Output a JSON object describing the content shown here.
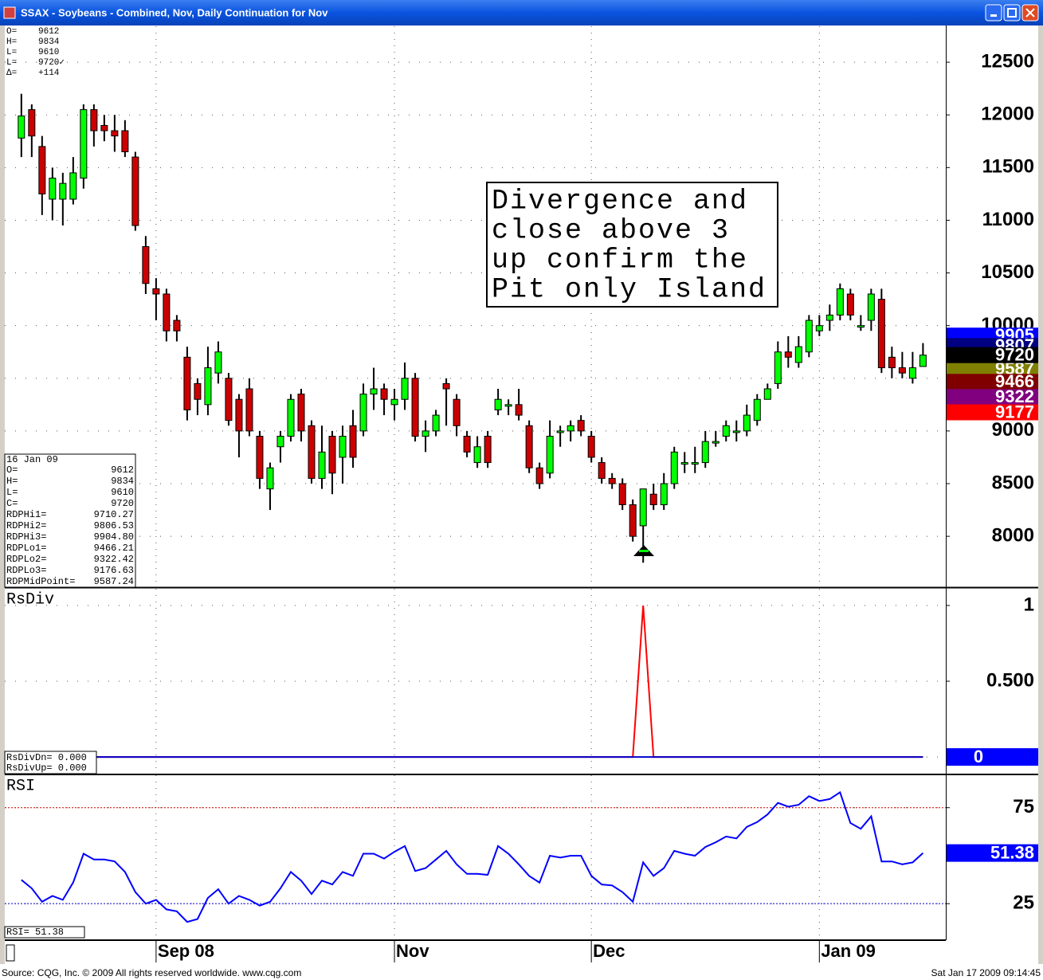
{
  "window": {
    "title": "SSAX - Soybeans - Combined, Nov, Daily Continuation for Nov"
  },
  "quote_box": {
    "rows": [
      {
        "label": "O=",
        "value": "9612"
      },
      {
        "label": "H=",
        "value": "9834"
      },
      {
        "label": "L=",
        "value": "9610"
      },
      {
        "label": "L=",
        "value": "9720✓"
      },
      {
        "label": "Δ=",
        "value": "+114"
      }
    ]
  },
  "data_box": {
    "date": "16 Jan 09",
    "rows": [
      {
        "label": "O=",
        "value": "9612"
      },
      {
        "label": "H=",
        "value": "9834"
      },
      {
        "label": "L=",
        "value": "9610"
      },
      {
        "label": "C=",
        "value": "9720"
      },
      {
        "label": "RDPHi1=",
        "value": "9710.27"
      },
      {
        "label": "RDPHi2=",
        "value": "9806.53"
      },
      {
        "label": "RDPHi3=",
        "value": "9904.80"
      },
      {
        "label": "RDPLo1=",
        "value": "9466.21"
      },
      {
        "label": "RDPLo2=",
        "value": "9322.42"
      },
      {
        "label": "RDPLo3=",
        "value": "9176.63"
      },
      {
        "label": "RDPMidPoint=",
        "value": "9587.24"
      }
    ]
  },
  "annotation": {
    "lines": [
      "Divergence and",
      "close above 3",
      "up confirm the",
      "Pit only Island"
    ]
  },
  "footer": {
    "left": "Source: CQG, Inc. © 2009 All rights reserved worldwide. www.cqg.com",
    "right": "Sat Jan 17 2009 09:14:45"
  },
  "chart_data": [
    {
      "type": "candlestick",
      "up_color": "#00ff00",
      "down_color": "#cc0000",
      "grid": true,
      "xlim": [
        -1.6,
        89.2
      ],
      "ylim": [
        7517,
        12841
      ],
      "yticks": [
        8000,
        8500,
        9000,
        9500,
        10000,
        10500,
        11000,
        11500,
        12000,
        12500
      ],
      "open": [
        11780,
        12050,
        11700,
        11200,
        11200,
        11200,
        11400,
        12050,
        11900,
        11850,
        11850,
        11600,
        10750,
        10350,
        10300,
        10050,
        9700,
        9450,
        9250,
        9550,
        9500,
        9300,
        9400,
        8950,
        8450,
        8850,
        8950,
        9350,
        9050,
        8550,
        8950,
        8750,
        9050,
        9000,
        9350,
        9400,
        9250,
        9300,
        9500,
        8950,
        9000,
        9450,
        9300,
        8950,
        8700,
        8950,
        9200,
        9250,
        9250,
        9050,
        8650,
        8600,
        9000,
        9000,
        9100,
        8950,
        8700,
        8550,
        8500,
        8300,
        8100,
        8400,
        8300,
        8500,
        8700,
        8700,
        8700,
        8900,
        8950,
        9000,
        9000,
        9100,
        9300,
        9450,
        9750,
        9650,
        9750,
        9950,
        10050,
        10100,
        10300,
        10000,
        10050,
        10250,
        9700,
        9600,
        9500,
        9612
      ],
      "high": [
        12200,
        12100,
        11800,
        11500,
        11450,
        11600,
        12100,
        12100,
        12000,
        12000,
        11950,
        11650,
        10850,
        10450,
        10350,
        10100,
        9800,
        9500,
        9800,
        9850,
        9550,
        9350,
        9500,
        9000,
        8700,
        9000,
        9350,
        9400,
        9100,
        9050,
        9000,
        9050,
        9200,
        9450,
        9600,
        9450,
        9400,
        9650,
        9550,
        9100,
        9200,
        9500,
        9350,
        9000,
        8950,
        9000,
        9400,
        9300,
        9400,
        9100,
        8700,
        9100,
        9050,
        9100,
        9150,
        9000,
        8750,
        8600,
        8550,
        8350,
        8450,
        8500,
        8600,
        8850,
        8800,
        8850,
        9000,
        9000,
        9100,
        9100,
        9250,
        9350,
        9450,
        9850,
        9900,
        9900,
        10100,
        10100,
        10200,
        10400,
        10350,
        10100,
        10350,
        10350,
        9800,
        9750,
        9750,
        9834
      ],
      "low": [
        11600,
        11600,
        11050,
        11000,
        10950,
        11150,
        11300,
        11700,
        11750,
        11650,
        11600,
        10900,
        10300,
        10050,
        9850,
        9850,
        9100,
        9150,
        9150,
        9450,
        9050,
        8750,
        8950,
        8450,
        8250,
        8700,
        8900,
        8900,
        8500,
        8450,
        8400,
        8500,
        8650,
        8950,
        9200,
        9150,
        9100,
        9200,
        8900,
        8800,
        8950,
        9050,
        8950,
        8750,
        8650,
        8650,
        9150,
        9150,
        9100,
        8600,
        8450,
        8550,
        8850,
        8900,
        8950,
        8700,
        8500,
        8450,
        8250,
        7950,
        7750,
        8250,
        8250,
        8450,
        8600,
        8600,
        8650,
        8850,
        8900,
        8900,
        8950,
        9050,
        9300,
        9400,
        9600,
        9600,
        9700,
        9900,
        9950,
        10050,
        10050,
        9950,
        9950,
        9550,
        9500,
        9500,
        9450,
        9610
      ],
      "close": [
        11990,
        11800,
        11250,
        11400,
        11350,
        11450,
        12050,
        11850,
        11850,
        11800,
        11650,
        10950,
        10400,
        10300,
        9950,
        9950,
        9200,
        9300,
        9600,
        9750,
        9100,
        9000,
        9000,
        8550,
        8650,
        8950,
        9300,
        9000,
        8550,
        8800,
        8600,
        8950,
        8750,
        9350,
        9400,
        9300,
        9300,
        9500,
        8950,
        9000,
        9150,
        9400,
        9050,
        8800,
        8850,
        8700,
        9300,
        9250,
        9150,
        8650,
        8500,
        8950,
        9000,
        9050,
        9000,
        8750,
        8550,
        8500,
        8300,
        8000,
        8450,
        8300,
        8500,
        8800,
        8700,
        8700,
        8900,
        8900,
        9050,
        9000,
        9150,
        9300,
        9400,
        9750,
        9700,
        9800,
        10050,
        10000,
        10100,
        10350,
        10100,
        10000,
        10300,
        9600,
        9600,
        9550,
        9600,
        9720
      ],
      "price_markers": [
        {
          "value": 9905,
          "color": "#0000ff"
        },
        {
          "value": 9807,
          "color": "#000080"
        },
        {
          "value": 9587,
          "color": "#808000"
        },
        {
          "value": 9466,
          "color": "#800000"
        },
        {
          "value": 9322,
          "color": "#800080"
        },
        {
          "value": 9177,
          "color": "#ff0000"
        },
        {
          "value": 9720,
          "color": "#000000"
        }
      ]
    },
    {
      "type": "line",
      "title": "RsDiv",
      "grid": true,
      "xlim": [
        -1.6,
        89.2
      ],
      "ylim": [
        -0.11,
        1.11
      ],
      "yticks": [
        0,
        {
          "value": 0.5,
          "label": "0.500"
        },
        1
      ],
      "status": [
        "RsDivDn= 0.000",
        "RsDivUp= 0.000"
      ],
      "marker": {
        "value": 0,
        "color": "#0000ff"
      },
      "series": [
        {
          "name": "RsDivUp",
          "color": "#ff0000",
          "values": [
            0,
            0,
            0,
            0,
            0,
            0,
            0,
            0,
            0,
            0,
            0,
            0,
            0,
            0,
            0,
            0,
            0,
            0,
            0,
            0,
            0,
            0,
            0,
            0,
            0,
            0,
            0,
            0,
            0,
            0,
            0,
            0,
            0,
            0,
            0,
            0,
            0,
            0,
            0,
            0,
            0,
            0,
            0,
            0,
            0,
            0,
            0,
            0,
            0,
            0,
            0,
            0,
            0,
            0,
            0,
            0,
            0,
            0,
            0,
            0,
            1,
            0,
            0,
            0,
            0,
            0,
            0,
            0,
            0,
            0,
            0,
            0,
            0,
            0,
            0,
            0,
            0,
            0,
            0,
            0,
            0,
            0,
            0,
            0,
            0,
            0,
            0,
            0
          ]
        },
        {
          "name": "RsDivDn",
          "color": "#0000cc",
          "values": [
            0,
            0,
            0,
            0,
            0,
            0,
            0,
            0,
            0,
            0,
            0,
            0,
            0,
            0,
            0,
            0,
            0,
            0,
            0,
            0,
            0,
            0,
            0,
            0,
            0,
            0,
            0,
            0,
            0,
            0,
            0,
            0,
            0,
            0,
            0,
            0,
            0,
            0,
            0,
            0,
            0,
            0,
            0,
            0,
            0,
            0,
            0,
            0,
            0,
            0,
            0,
            0,
            0,
            0,
            0,
            0,
            0,
            0,
            0,
            0,
            0,
            0,
            0,
            0,
            0,
            0,
            0,
            0,
            0,
            0,
            0,
            0,
            0,
            0,
            0,
            0,
            0,
            0,
            0,
            0,
            0,
            0,
            0,
            0,
            0,
            0,
            0,
            0
          ]
        }
      ]
    },
    {
      "type": "line",
      "title": "RSI",
      "grid": true,
      "xlim": [
        -1.6,
        89.2
      ],
      "ylim": [
        6.4,
        91.9
      ],
      "yticks": [
        25,
        75
      ],
      "status": "RSI=   51.38",
      "ref_lines": [
        {
          "value": 75,
          "color": "#cc0000"
        },
        {
          "value": 25,
          "color": "#0000cc"
        }
      ],
      "marker": {
        "value": 51.38,
        "color": "#0000ff"
      },
      "xticks": [
        {
          "value": 13,
          "label": "Sep 08"
        },
        {
          "value": 36,
          "label": "Nov"
        },
        {
          "value": 55,
          "label": "Dec"
        },
        {
          "value": 77,
          "label": "Jan 09"
        }
      ],
      "series": [
        {
          "name": "RSI",
          "color": "#0000ff",
          "values": [
            37.4,
            33,
            26,
            29,
            27,
            36,
            51,
            48,
            48,
            47,
            41.5,
            31,
            25,
            27,
            22,
            21,
            15.5,
            17,
            28,
            32.5,
            25,
            29,
            27,
            24,
            26,
            33,
            41.5,
            37,
            30,
            37,
            35,
            41.5,
            39.5,
            51,
            51,
            48.5,
            52,
            55,
            42,
            43.5,
            48,
            52.5,
            45.5,
            40.5,
            40.5,
            40,
            55,
            51,
            45.5,
            39.5,
            36,
            50,
            49,
            50,
            50,
            39.5,
            35,
            34.5,
            31,
            26,
            46.5,
            39.5,
            43.5,
            52.5,
            51,
            50,
            54.5,
            57,
            60,
            59,
            65,
            67.5,
            71.5,
            77.5,
            75.5,
            76.5,
            81,
            78.5,
            79.5,
            83,
            67,
            64,
            70.5,
            47,
            47,
            45.5,
            46.5,
            51.38
          ]
        }
      ]
    }
  ]
}
